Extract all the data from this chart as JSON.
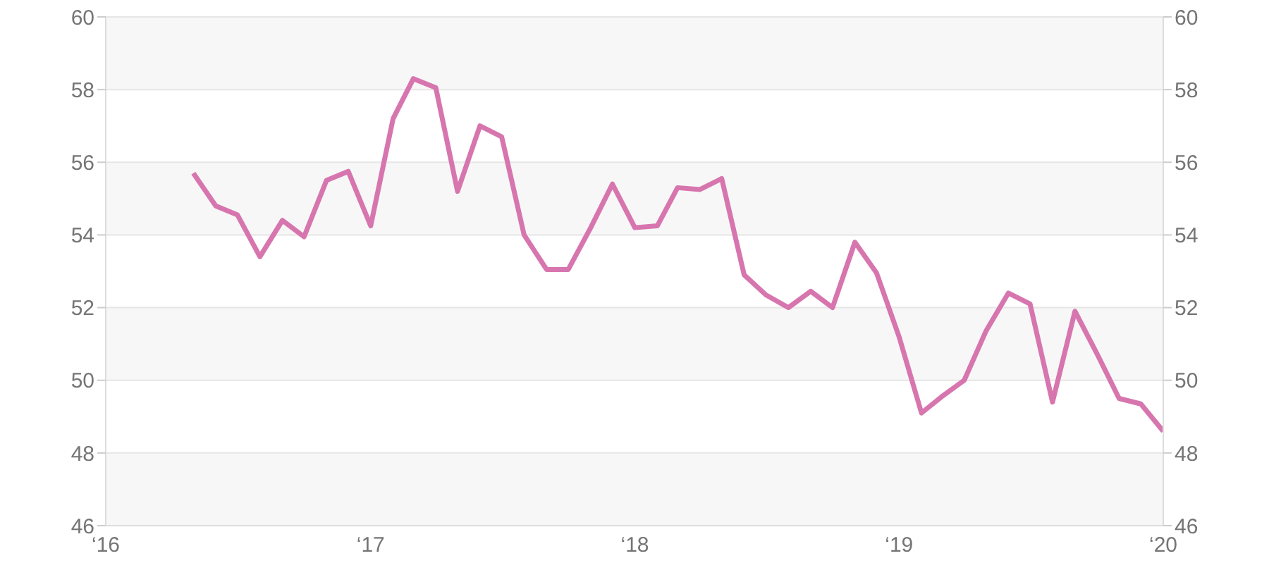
{
  "chart_data": {
    "type": "line",
    "x": [
      "2016-05",
      "2016-06",
      "2016-07",
      "2016-08",
      "2016-09",
      "2016-10",
      "2016-11",
      "2016-12",
      "2017-01",
      "2017-02",
      "2017-03",
      "2017-04",
      "2017-05",
      "2017-06",
      "2017-07",
      "2017-08",
      "2017-09",
      "2017-10",
      "2017-11",
      "2017-12",
      "2018-01",
      "2018-02",
      "2018-03",
      "2018-04",
      "2018-05",
      "2018-06",
      "2018-07",
      "2018-08",
      "2018-09",
      "2018-10",
      "2018-11",
      "2018-12",
      "2019-01",
      "2019-02",
      "2019-03",
      "2019-04",
      "2019-05",
      "2019-06",
      "2019-07",
      "2019-08",
      "2019-09",
      "2019-10",
      "2019-11",
      "2019-12",
      "2020-01"
    ],
    "series": [
      {
        "color": "#d775ae",
        "values": [
          55.7,
          54.8,
          54.55,
          53.4,
          54.4,
          53.95,
          55.5,
          55.75,
          54.25,
          57.2,
          58.3,
          58.05,
          55.2,
          57.0,
          56.7,
          54.0,
          53.05,
          53.05,
          54.2,
          55.4,
          54.2,
          54.25,
          55.3,
          55.25,
          55.55,
          52.9,
          52.35,
          52.0,
          52.45,
          52.0,
          53.8,
          52.95,
          51.2,
          49.1,
          49.55,
          50.0,
          51.35,
          52.4,
          52.1,
          49.4,
          51.9,
          50.75,
          49.5,
          49.35,
          48.6
        ]
      }
    ],
    "xlim": [
      "2016",
      "2020"
    ],
    "xticks": [
      {
        "value": "2016",
        "label": "‘16"
      },
      {
        "value": "2017",
        "label": "‘17"
      },
      {
        "value": "2018",
        "label": "‘18"
      },
      {
        "value": "2019",
        "label": "‘19"
      },
      {
        "value": "2020",
        "label": "‘20"
      }
    ],
    "ylim": [
      46,
      60
    ],
    "yticks": [
      46,
      48,
      50,
      52,
      54,
      56,
      58,
      60
    ],
    "y2lim": [
      46,
      60
    ],
    "y2ticks": [
      46,
      48,
      50,
      52,
      54,
      56,
      58,
      60
    ],
    "grid": "y",
    "marker": "none",
    "line_style": "solid"
  }
}
